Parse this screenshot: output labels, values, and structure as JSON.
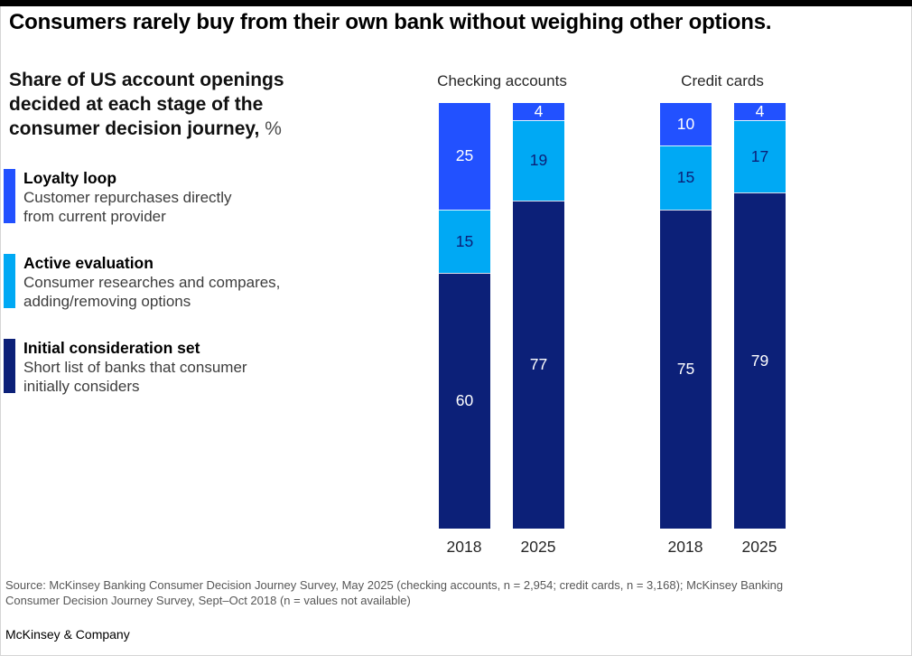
{
  "title": "Consumers rarely buy from their own bank without weighing other options.",
  "subtitle": {
    "lines": [
      "Share of US account openings",
      "decided at each stage of the",
      "consumer decision journey,"
    ],
    "unit": "%"
  },
  "legend": [
    {
      "name": "Loyalty loop",
      "desc_lines": [
        "Customer repurchases directly",
        "from current provider"
      ],
      "color": "#2251ff"
    },
    {
      "name": "Active evaluation",
      "desc_lines": [
        "Consumer researches and compares,",
        "adding/removing options"
      ],
      "color": "#00a9f4"
    },
    {
      "name": "Initial consideration set",
      "desc_lines": [
        "Short list of banks that consumer",
        "initially considers"
      ],
      "color": "#0c2078"
    }
  ],
  "chart_data": {
    "type": "bar",
    "stacked": true,
    "unit": "%",
    "ylim": [
      0,
      100
    ],
    "stages": [
      {
        "name": "Loyalty loop",
        "color": "#2251ff",
        "label_color": "#ffffff"
      },
      {
        "name": "Active evaluation",
        "color": "#00a9f4",
        "label_color": "#0c2078"
      },
      {
        "name": "Initial consideration set",
        "color": "#0c2078",
        "label_color": "#ffffff"
      }
    ],
    "groups": [
      {
        "label": "Checking accounts",
        "bars": [
          {
            "year": "2018",
            "values": [
              25,
              15,
              60
            ]
          },
          {
            "year": "2025",
            "values": [
              4,
              19,
              77
            ]
          }
        ]
      },
      {
        "label": "Credit cards",
        "bars": [
          {
            "year": "2018",
            "values": [
              10,
              15,
              75
            ]
          },
          {
            "year": "2025",
            "values": [
              4,
              17,
              79
            ]
          }
        ]
      }
    ]
  },
  "source_lines": [
    "Source: McKinsey Banking Consumer Decision Journey Survey, May 2025 (checking accounts, n = 2,954; credit cards, n = 3,168); McKinsey Banking",
    "Consumer Decision Journey Survey, Sept–Oct 2018 (n = values not available)"
  ],
  "footer": "McKinsey & Company"
}
